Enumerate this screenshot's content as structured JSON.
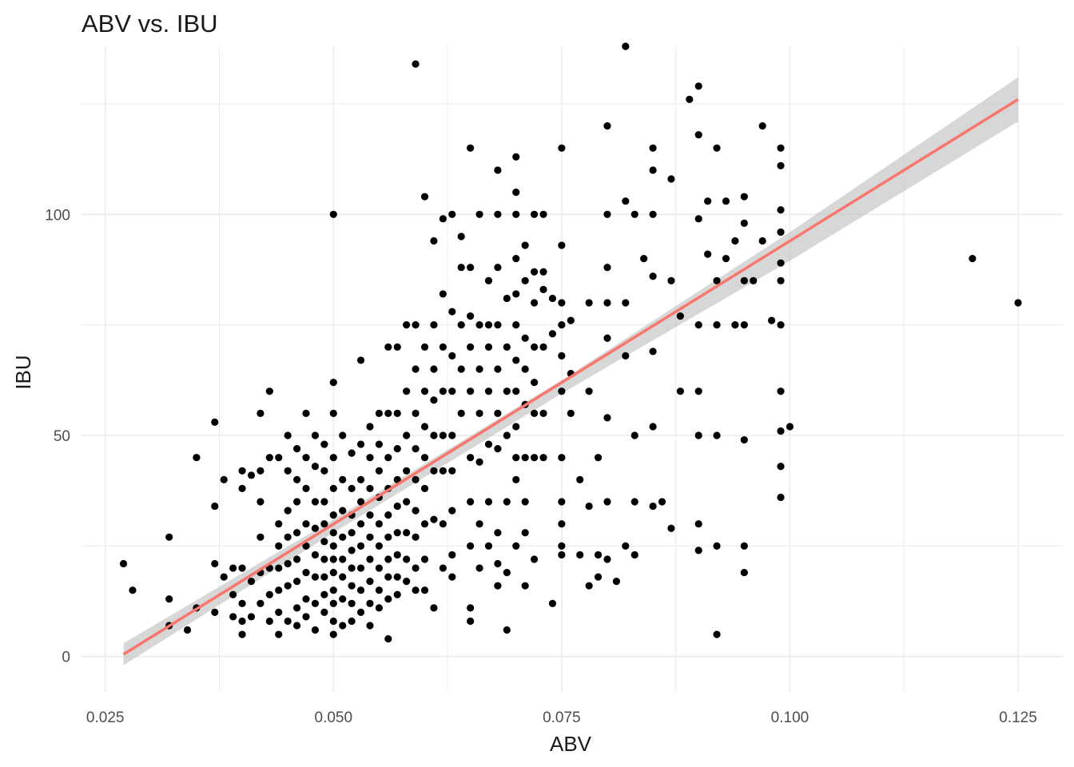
{
  "chart_data": {
    "type": "scatter",
    "title": "ABV vs. IBU",
    "xlabel": "ABV",
    "ylabel": "IBU",
    "xlim": [
      0.0224,
      0.1299
    ],
    "ylim": [
      -8,
      138
    ],
    "x_ticks": [
      0.025,
      0.05,
      0.075,
      0.1,
      0.125
    ],
    "x_tick_labels": [
      "0.025",
      "0.050",
      "0.075",
      "0.100",
      "0.125"
    ],
    "y_ticks": [
      0,
      50,
      100
    ],
    "y_tick_labels": [
      "0",
      "50",
      "100"
    ],
    "grid": true,
    "colors": {
      "points": "#000000",
      "trend": "#f8766d",
      "band": "#bdbdbd",
      "grid": "#ebebeb"
    },
    "trend_line": {
      "x": [
        0.027,
        0.125
      ],
      "y": [
        0.5,
        126
      ]
    },
    "confidence_band": {
      "x": [
        0.027,
        0.05,
        0.075,
        0.1,
        0.125
      ],
      "lower": [
        -2,
        28.0,
        59.5,
        89.5,
        121
      ],
      "upper": [
        3,
        31.0,
        62.5,
        96.0,
        131
      ]
    },
    "points": [
      [
        0.027,
        21
      ],
      [
        0.028,
        15
      ],
      [
        0.032,
        27
      ],
      [
        0.032,
        13
      ],
      [
        0.032,
        7
      ],
      [
        0.034,
        6
      ],
      [
        0.035,
        45
      ],
      [
        0.035,
        11
      ],
      [
        0.037,
        53
      ],
      [
        0.037,
        34
      ],
      [
        0.037,
        21
      ],
      [
        0.037,
        10
      ],
      [
        0.038,
        40
      ],
      [
        0.038,
        18
      ],
      [
        0.039,
        20
      ],
      [
        0.039,
        14
      ],
      [
        0.039,
        9
      ],
      [
        0.04,
        42
      ],
      [
        0.04,
        38
      ],
      [
        0.04,
        20
      ],
      [
        0.04,
        12
      ],
      [
        0.04,
        8
      ],
      [
        0.04,
        5
      ],
      [
        0.041,
        41
      ],
      [
        0.041,
        17
      ],
      [
        0.041,
        9
      ],
      [
        0.042,
        55
      ],
      [
        0.042,
        42
      ],
      [
        0.042,
        35
      ],
      [
        0.042,
        27
      ],
      [
        0.042,
        19
      ],
      [
        0.042,
        12
      ],
      [
        0.043,
        60
      ],
      [
        0.043,
        45
      ],
      [
        0.043,
        20
      ],
      [
        0.043,
        14
      ],
      [
        0.043,
        8
      ],
      [
        0.044,
        45
      ],
      [
        0.044,
        30
      ],
      [
        0.044,
        25
      ],
      [
        0.044,
        20
      ],
      [
        0.044,
        15
      ],
      [
        0.044,
        10
      ],
      [
        0.044,
        5
      ],
      [
        0.045,
        50
      ],
      [
        0.045,
        42
      ],
      [
        0.045,
        33
      ],
      [
        0.045,
        27
      ],
      [
        0.045,
        21
      ],
      [
        0.045,
        16
      ],
      [
        0.045,
        8
      ],
      [
        0.046,
        47
      ],
      [
        0.046,
        40
      ],
      [
        0.046,
        35
      ],
      [
        0.046,
        28
      ],
      [
        0.046,
        22
      ],
      [
        0.046,
        17
      ],
      [
        0.046,
        11
      ],
      [
        0.046,
        7
      ],
      [
        0.047,
        55
      ],
      [
        0.047,
        45
      ],
      [
        0.047,
        38
      ],
      [
        0.047,
        30
      ],
      [
        0.047,
        25
      ],
      [
        0.047,
        19
      ],
      [
        0.047,
        13
      ],
      [
        0.047,
        9
      ],
      [
        0.048,
        50
      ],
      [
        0.048,
        43
      ],
      [
        0.048,
        35
      ],
      [
        0.048,
        29
      ],
      [
        0.048,
        23
      ],
      [
        0.048,
        18
      ],
      [
        0.048,
        12
      ],
      [
        0.048,
        6
      ],
      [
        0.049,
        48
      ],
      [
        0.049,
        42
      ],
      [
        0.049,
        35
      ],
      [
        0.049,
        30
      ],
      [
        0.049,
        26
      ],
      [
        0.049,
        22
      ],
      [
        0.049,
        18
      ],
      [
        0.049,
        14
      ],
      [
        0.049,
        10
      ],
      [
        0.05,
        100
      ],
      [
        0.05,
        62
      ],
      [
        0.05,
        55
      ],
      [
        0.05,
        45
      ],
      [
        0.05,
        38
      ],
      [
        0.05,
        32
      ],
      [
        0.05,
        28
      ],
      [
        0.05,
        25
      ],
      [
        0.05,
        22
      ],
      [
        0.05,
        19
      ],
      [
        0.05,
        15
      ],
      [
        0.05,
        12
      ],
      [
        0.05,
        8
      ],
      [
        0.05,
        5
      ],
      [
        0.051,
        50
      ],
      [
        0.051,
        40
      ],
      [
        0.051,
        33
      ],
      [
        0.051,
        27
      ],
      [
        0.051,
        22
      ],
      [
        0.051,
        18
      ],
      [
        0.051,
        13
      ],
      [
        0.051,
        7
      ],
      [
        0.052,
        46
      ],
      [
        0.052,
        38
      ],
      [
        0.052,
        32
      ],
      [
        0.052,
        28
      ],
      [
        0.052,
        24
      ],
      [
        0.052,
        20
      ],
      [
        0.052,
        16
      ],
      [
        0.052,
        12
      ],
      [
        0.052,
        8
      ],
      [
        0.053,
        67
      ],
      [
        0.053,
        48
      ],
      [
        0.053,
        40
      ],
      [
        0.053,
        35
      ],
      [
        0.053,
        30
      ],
      [
        0.053,
        25
      ],
      [
        0.053,
        20
      ],
      [
        0.053,
        15
      ],
      [
        0.053,
        10
      ],
      [
        0.054,
        52
      ],
      [
        0.054,
        45
      ],
      [
        0.054,
        38
      ],
      [
        0.054,
        32
      ],
      [
        0.054,
        27
      ],
      [
        0.054,
        22
      ],
      [
        0.054,
        17
      ],
      [
        0.054,
        12
      ],
      [
        0.054,
        7
      ],
      [
        0.055,
        55
      ],
      [
        0.055,
        48
      ],
      [
        0.055,
        42
      ],
      [
        0.055,
        36
      ],
      [
        0.055,
        30
      ],
      [
        0.055,
        25
      ],
      [
        0.055,
        20
      ],
      [
        0.055,
        15
      ],
      [
        0.055,
        11
      ],
      [
        0.056,
        70
      ],
      [
        0.056,
        55
      ],
      [
        0.056,
        45
      ],
      [
        0.056,
        38
      ],
      [
        0.056,
        32
      ],
      [
        0.056,
        27
      ],
      [
        0.056,
        22
      ],
      [
        0.056,
        18
      ],
      [
        0.056,
        13
      ],
      [
        0.056,
        4
      ],
      [
        0.057,
        70
      ],
      [
        0.057,
        55
      ],
      [
        0.057,
        47
      ],
      [
        0.057,
        40
      ],
      [
        0.057,
        34
      ],
      [
        0.057,
        28
      ],
      [
        0.057,
        23
      ],
      [
        0.057,
        18
      ],
      [
        0.057,
        14
      ],
      [
        0.058,
        75
      ],
      [
        0.058,
        60
      ],
      [
        0.058,
        50
      ],
      [
        0.058,
        42
      ],
      [
        0.058,
        35
      ],
      [
        0.058,
        28
      ],
      [
        0.058,
        22
      ],
      [
        0.058,
        17
      ],
      [
        0.059,
        134
      ],
      [
        0.059,
        75
      ],
      [
        0.059,
        65
      ],
      [
        0.059,
        55
      ],
      [
        0.059,
        47
      ],
      [
        0.059,
        40
      ],
      [
        0.059,
        33
      ],
      [
        0.059,
        27
      ],
      [
        0.059,
        20
      ],
      [
        0.059,
        15
      ],
      [
        0.06,
        104
      ],
      [
        0.06,
        70
      ],
      [
        0.06,
        60
      ],
      [
        0.06,
        52
      ],
      [
        0.06,
        45
      ],
      [
        0.06,
        38
      ],
      [
        0.06,
        30
      ],
      [
        0.06,
        22
      ],
      [
        0.06,
        15
      ],
      [
        0.061,
        94
      ],
      [
        0.061,
        75
      ],
      [
        0.061,
        65
      ],
      [
        0.061,
        58
      ],
      [
        0.061,
        50
      ],
      [
        0.061,
        42
      ],
      [
        0.061,
        31
      ],
      [
        0.061,
        11
      ],
      [
        0.062,
        99
      ],
      [
        0.062,
        82
      ],
      [
        0.062,
        70
      ],
      [
        0.062,
        60
      ],
      [
        0.062,
        50
      ],
      [
        0.062,
        42
      ],
      [
        0.062,
        30
      ],
      [
        0.062,
        20
      ],
      [
        0.063,
        100
      ],
      [
        0.063,
        78
      ],
      [
        0.063,
        68
      ],
      [
        0.063,
        60
      ],
      [
        0.063,
        50
      ],
      [
        0.063,
        42
      ],
      [
        0.063,
        33
      ],
      [
        0.063,
        23
      ],
      [
        0.063,
        18
      ],
      [
        0.064,
        95
      ],
      [
        0.064,
        88
      ],
      [
        0.064,
        75
      ],
      [
        0.064,
        65
      ],
      [
        0.064,
        55
      ],
      [
        0.065,
        115
      ],
      [
        0.065,
        88
      ],
      [
        0.065,
        77
      ],
      [
        0.065,
        70
      ],
      [
        0.065,
        60
      ],
      [
        0.065,
        45
      ],
      [
        0.065,
        35
      ],
      [
        0.065,
        25
      ],
      [
        0.065,
        11
      ],
      [
        0.065,
        8
      ],
      [
        0.066,
        100
      ],
      [
        0.066,
        75
      ],
      [
        0.066,
        65
      ],
      [
        0.066,
        55
      ],
      [
        0.066,
        44
      ],
      [
        0.066,
        30
      ],
      [
        0.066,
        20
      ],
      [
        0.067,
        85
      ],
      [
        0.067,
        75
      ],
      [
        0.067,
        70
      ],
      [
        0.067,
        60
      ],
      [
        0.067,
        48
      ],
      [
        0.067,
        35
      ],
      [
        0.067,
        25
      ],
      [
        0.068,
        110
      ],
      [
        0.068,
        100
      ],
      [
        0.068,
        88
      ],
      [
        0.068,
        75
      ],
      [
        0.068,
        65
      ],
      [
        0.068,
        55
      ],
      [
        0.068,
        47
      ],
      [
        0.068,
        28
      ],
      [
        0.068,
        21
      ],
      [
        0.068,
        16
      ],
      [
        0.069,
        81
      ],
      [
        0.069,
        70
      ],
      [
        0.069,
        60
      ],
      [
        0.069,
        50
      ],
      [
        0.069,
        35
      ],
      [
        0.069,
        19
      ],
      [
        0.069,
        6
      ],
      [
        0.07,
        113
      ],
      [
        0.07,
        105
      ],
      [
        0.07,
        100
      ],
      [
        0.07,
        90
      ],
      [
        0.07,
        82
      ],
      [
        0.07,
        75
      ],
      [
        0.07,
        67
      ],
      [
        0.07,
        60
      ],
      [
        0.07,
        52
      ],
      [
        0.07,
        45
      ],
      [
        0.07,
        40
      ],
      [
        0.07,
        25
      ],
      [
        0.071,
        93
      ],
      [
        0.071,
        85
      ],
      [
        0.071,
        72
      ],
      [
        0.071,
        65
      ],
      [
        0.071,
        57
      ],
      [
        0.071,
        45
      ],
      [
        0.071,
        35
      ],
      [
        0.071,
        28
      ],
      [
        0.071,
        16
      ],
      [
        0.072,
        100
      ],
      [
        0.072,
        87
      ],
      [
        0.072,
        80
      ],
      [
        0.072,
        70
      ],
      [
        0.072,
        62
      ],
      [
        0.072,
        55
      ],
      [
        0.072,
        45
      ],
      [
        0.072,
        22
      ],
      [
        0.073,
        100
      ],
      [
        0.073,
        87
      ],
      [
        0.073,
        83
      ],
      [
        0.073,
        70
      ],
      [
        0.073,
        55
      ],
      [
        0.073,
        45
      ],
      [
        0.074,
        81
      ],
      [
        0.074,
        73
      ],
      [
        0.074,
        12
      ],
      [
        0.075,
        115
      ],
      [
        0.075,
        93
      ],
      [
        0.075,
        80
      ],
      [
        0.075,
        75
      ],
      [
        0.075,
        68
      ],
      [
        0.075,
        60
      ],
      [
        0.075,
        45
      ],
      [
        0.075,
        35
      ],
      [
        0.075,
        30
      ],
      [
        0.075,
        25
      ],
      [
        0.075,
        23
      ],
      [
        0.076,
        76
      ],
      [
        0.076,
        64
      ],
      [
        0.076,
        55
      ],
      [
        0.077,
        40
      ],
      [
        0.077,
        23
      ],
      [
        0.078,
        80
      ],
      [
        0.078,
        60
      ],
      [
        0.078,
        34
      ],
      [
        0.078,
        16
      ],
      [
        0.079,
        45
      ],
      [
        0.079,
        23
      ],
      [
        0.079,
        18
      ],
      [
        0.08,
        120
      ],
      [
        0.08,
        100
      ],
      [
        0.08,
        88
      ],
      [
        0.08,
        80
      ],
      [
        0.08,
        72
      ],
      [
        0.08,
        54
      ],
      [
        0.08,
        35
      ],
      [
        0.08,
        22
      ],
      [
        0.081,
        17
      ],
      [
        0.082,
        138
      ],
      [
        0.082,
        103
      ],
      [
        0.082,
        80
      ],
      [
        0.082,
        68
      ],
      [
        0.082,
        25
      ],
      [
        0.083,
        100
      ],
      [
        0.083,
        50
      ],
      [
        0.083,
        35
      ],
      [
        0.083,
        23
      ],
      [
        0.084,
        90
      ],
      [
        0.085,
        115
      ],
      [
        0.085,
        110
      ],
      [
        0.085,
        100
      ],
      [
        0.085,
        86
      ],
      [
        0.085,
        69
      ],
      [
        0.085,
        52
      ],
      [
        0.085,
        34
      ],
      [
        0.086,
        35
      ],
      [
        0.087,
        108
      ],
      [
        0.087,
        85
      ],
      [
        0.087,
        29
      ],
      [
        0.088,
        77
      ],
      [
        0.088,
        60
      ],
      [
        0.089,
        126
      ],
      [
        0.09,
        129
      ],
      [
        0.09,
        118
      ],
      [
        0.09,
        99
      ],
      [
        0.09,
        75
      ],
      [
        0.09,
        60
      ],
      [
        0.09,
        50
      ],
      [
        0.09,
        30
      ],
      [
        0.09,
        24
      ],
      [
        0.091,
        103
      ],
      [
        0.091,
        91
      ],
      [
        0.092,
        115
      ],
      [
        0.092,
        85
      ],
      [
        0.092,
        75
      ],
      [
        0.092,
        50
      ],
      [
        0.092,
        25
      ],
      [
        0.092,
        5
      ],
      [
        0.093,
        103
      ],
      [
        0.093,
        90
      ],
      [
        0.094,
        75
      ],
      [
        0.094,
        94
      ],
      [
        0.095,
        104
      ],
      [
        0.095,
        98
      ],
      [
        0.095,
        85
      ],
      [
        0.095,
        75
      ],
      [
        0.095,
        49
      ],
      [
        0.095,
        25
      ],
      [
        0.095,
        19
      ],
      [
        0.096,
        85
      ],
      [
        0.097,
        120
      ],
      [
        0.097,
        94
      ],
      [
        0.098,
        76
      ],
      [
        0.099,
        115
      ],
      [
        0.099,
        111
      ],
      [
        0.099,
        101
      ],
      [
        0.099,
        96
      ],
      [
        0.099,
        89
      ],
      [
        0.099,
        85
      ],
      [
        0.099,
        75
      ],
      [
        0.099,
        60
      ],
      [
        0.099,
        51
      ],
      [
        0.099,
        43
      ],
      [
        0.099,
        36
      ],
      [
        0.1,
        52
      ],
      [
        0.12,
        90
      ],
      [
        0.125,
        80
      ]
    ]
  }
}
